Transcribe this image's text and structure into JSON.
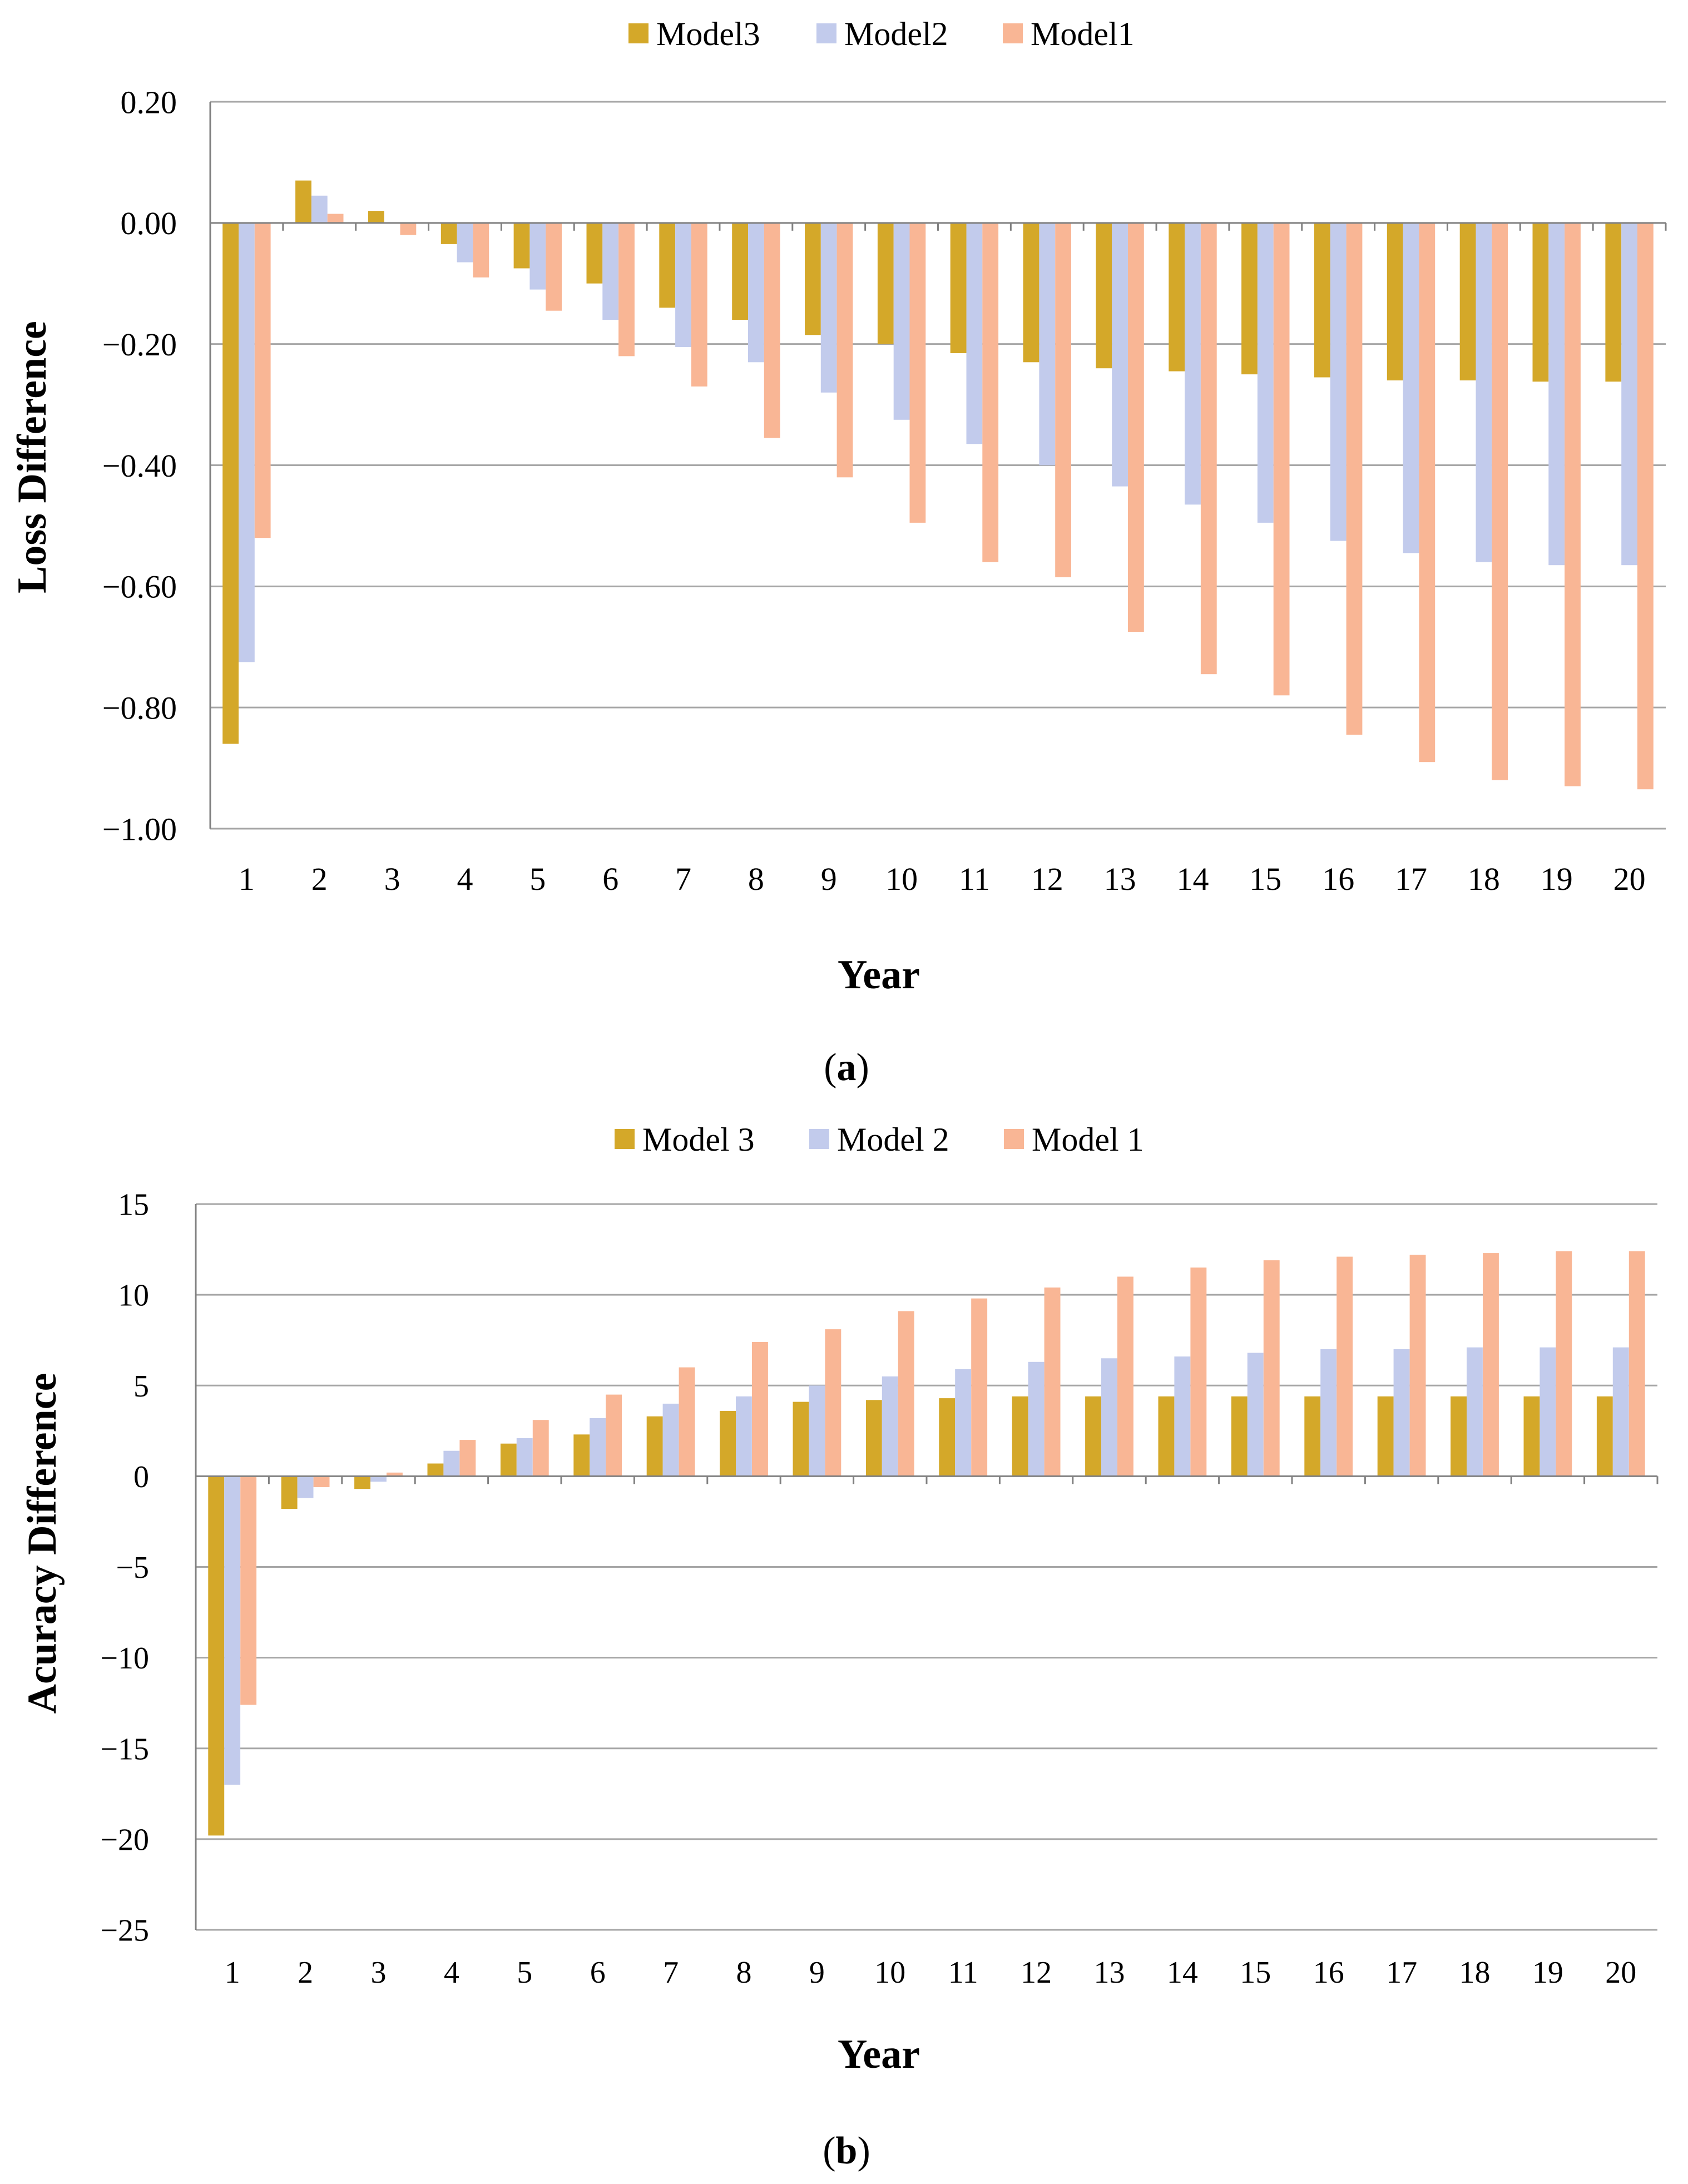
{
  "colors": {
    "model3": "#D4A829",
    "model2": "#C2CBEC",
    "model1": "#F9B695",
    "grid": "#A6A6A6",
    "axis": "#808080",
    "text": "#000000"
  },
  "chart_data": [
    {
      "panel": "a",
      "panel_label": "a",
      "type": "bar",
      "title": "",
      "xlabel": "Year",
      "ylabel": "Loss Difference",
      "ylim": [
        -1.0,
        0.2
      ],
      "yticks": [
        0.2,
        0.0,
        -0.2,
        -0.4,
        -0.6,
        -0.8,
        -1.0
      ],
      "ytick_labels": [
        "0.20",
        "0.00",
        "−0.20",
        "−0.40",
        "−0.60",
        "−0.80",
        "−1.00"
      ],
      "grid": true,
      "legend_position": "top-center",
      "categories": [
        "1",
        "2",
        "3",
        "4",
        "5",
        "6",
        "7",
        "8",
        "9",
        "10",
        "11",
        "12",
        "13",
        "14",
        "15",
        "16",
        "17",
        "18",
        "19",
        "20"
      ],
      "series": [
        {
          "key": "model3",
          "name": "Model3",
          "values": [
            -0.86,
            0.07,
            0.02,
            -0.035,
            -0.075,
            -0.1,
            -0.14,
            -0.16,
            -0.185,
            -0.2,
            -0.215,
            -0.23,
            -0.24,
            -0.245,
            -0.25,
            -0.255,
            -0.26,
            -0.26,
            -0.262,
            -0.262
          ]
        },
        {
          "key": "model2",
          "name": "Model2",
          "values": [
            -0.725,
            0.045,
            0.0,
            -0.065,
            -0.11,
            -0.16,
            -0.205,
            -0.23,
            -0.28,
            -0.325,
            -0.365,
            -0.4,
            -0.435,
            -0.465,
            -0.495,
            -0.525,
            -0.545,
            -0.56,
            -0.565,
            -0.565
          ]
        },
        {
          "key": "model1",
          "name": "Model1",
          "values": [
            -0.52,
            0.015,
            -0.02,
            -0.09,
            -0.145,
            -0.22,
            -0.27,
            -0.355,
            -0.42,
            -0.495,
            -0.56,
            -0.585,
            -0.675,
            -0.745,
            -0.78,
            -0.845,
            -0.89,
            -0.92,
            -0.93,
            -0.935
          ]
        }
      ]
    },
    {
      "panel": "b",
      "panel_label": "b",
      "type": "bar",
      "title": "",
      "xlabel": "Year",
      "ylabel": "Acuracy Difference",
      "ylim": [
        -25,
        15
      ],
      "yticks": [
        15,
        10,
        5,
        0,
        -5,
        -10,
        -15,
        -20,
        -25
      ],
      "ytick_labels": [
        "15",
        "10",
        "5",
        "0",
        "−5",
        "−10",
        "−15",
        "−20",
        "−25"
      ],
      "grid": true,
      "legend_position": "top-center",
      "categories": [
        "1",
        "2",
        "3",
        "4",
        "5",
        "6",
        "7",
        "8",
        "9",
        "10",
        "11",
        "12",
        "13",
        "14",
        "15",
        "16",
        "17",
        "18",
        "19",
        "20"
      ],
      "series": [
        {
          "key": "model3",
          "name": "Model 3",
          "values": [
            -19.8,
            -1.8,
            -0.7,
            0.7,
            1.8,
            2.3,
            3.3,
            3.6,
            4.1,
            4.2,
            4.3,
            4.4,
            4.4,
            4.4,
            4.4,
            4.4,
            4.4,
            4.4,
            4.4,
            4.4
          ]
        },
        {
          "key": "model2",
          "name": "Model 2",
          "values": [
            -17.0,
            -1.2,
            -0.3,
            1.4,
            2.1,
            3.2,
            4.0,
            4.4,
            5.0,
            5.5,
            5.9,
            6.3,
            6.5,
            6.6,
            6.8,
            7.0,
            7.0,
            7.1,
            7.1,
            7.1
          ]
        },
        {
          "key": "model1",
          "name": "Model 1",
          "values": [
            -12.6,
            -0.6,
            0.2,
            2.0,
            3.1,
            4.5,
            6.0,
            7.4,
            8.1,
            9.1,
            9.8,
            10.4,
            11.0,
            11.5,
            11.9,
            12.1,
            12.2,
            12.3,
            12.4,
            12.4
          ]
        }
      ]
    }
  ]
}
